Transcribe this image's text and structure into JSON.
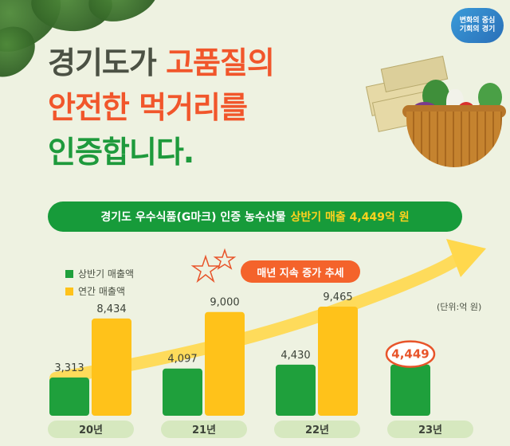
{
  "logo": {
    "line1": "변화의 중심",
    "line2": "기회의 경기"
  },
  "headline": {
    "line1_a": "경기도가 ",
    "line1_b": "고품질의",
    "line2": "안전한 먹거리를",
    "line3": "인증합니다."
  },
  "banner": {
    "text": "경기도 우수식품(G마크) 인증 농수산물",
    "highlight": "상반기 매출 4,449억 원"
  },
  "trend_label": "매년 지속 증가 추세",
  "unit_label": "(단위:억 원)",
  "colors": {
    "green": "#1fa03c",
    "yellow": "#ffc21a",
    "orange": "#f1562b",
    "banner": "#179b3a"
  },
  "chart_data": {
    "type": "bar",
    "categories": [
      "20년",
      "21년",
      "22년",
      "23년"
    ],
    "series": [
      {
        "name": "상반기 매출액",
        "values": [
          3313,
          4097,
          4430,
          4449
        ],
        "labels": [
          "3,313",
          "4,097",
          "4,430",
          "4,449"
        ]
      },
      {
        "name": "연간 매출액",
        "values": [
          8434,
          9000,
          9465,
          null
        ],
        "labels": [
          "8,434",
          "9,000",
          "9,465",
          ""
        ]
      }
    ],
    "highlight_category": "23년",
    "ylim": [
      0,
      10000
    ],
    "grid": false,
    "legend_position": "top-left"
  }
}
